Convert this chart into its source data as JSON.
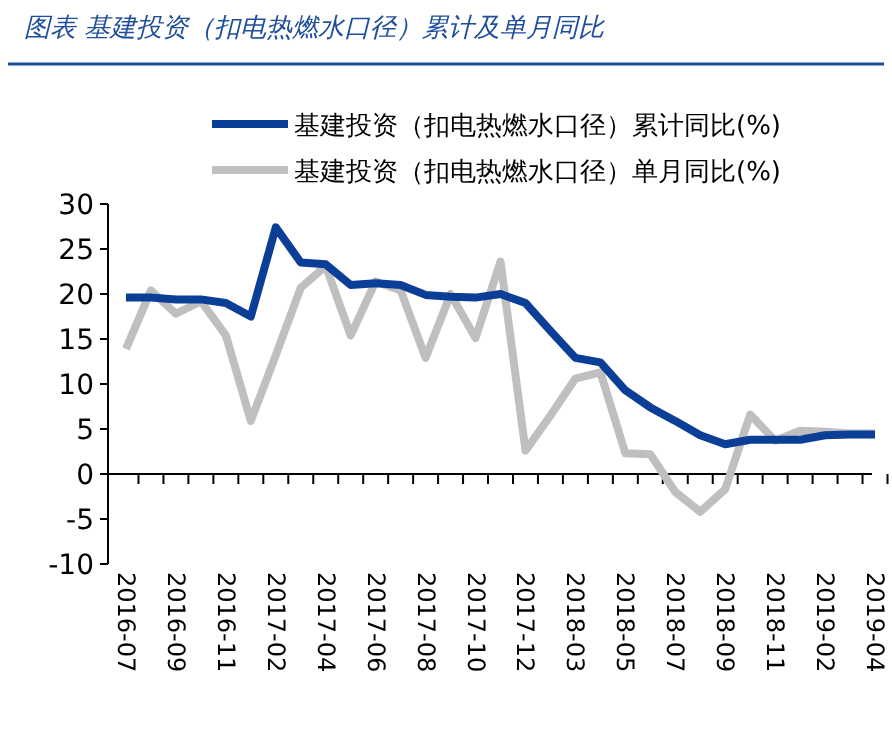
{
  "chart_data": {
    "type": "line",
    "title": "图表    基建投资（扣电热燃水口径）累计及单月同比",
    "categories": [
      "2016-07",
      null,
      "2016-09",
      null,
      "2016-11",
      null,
      "2017-02",
      null,
      "2017-04",
      null,
      "2017-06",
      null,
      "2017-08",
      null,
      "2017-10",
      null,
      "2017-12",
      null,
      "2018-03",
      null,
      "2018-05",
      null,
      "2018-07",
      null,
      "2018-09",
      null,
      "2018-11",
      null,
      "2019-02",
      null,
      "2019-04"
    ],
    "series": [
      {
        "name": "基建投资（扣电热燃水口径）累计同比(%)",
        "color": "#0b3f97",
        "values": [
          19.6,
          19.6,
          19.4,
          19.4,
          19.0,
          17.5,
          27.4,
          23.5,
          23.3,
          21.0,
          21.2,
          21.0,
          19.9,
          19.7,
          19.6,
          20.0,
          19.0,
          15.9,
          12.9,
          12.4,
          9.3,
          7.4,
          5.9,
          4.3,
          3.3,
          3.8,
          3.8,
          3.8,
          4.3,
          4.4,
          4.4
        ]
      },
      {
        "name": "基建投资（扣电热燃水口径）单月同比(%)",
        "color": "#bfbfbf",
        "values": [
          13.9,
          20.4,
          17.8,
          19.2,
          15.4,
          5.9,
          13.2,
          20.7,
          23.1,
          15.4,
          21.4,
          20.4,
          12.9,
          20.0,
          15.1,
          23.6,
          2.6,
          6.5,
          10.6,
          11.3,
          2.3,
          2.2,
          -2.0,
          -4.2,
          -1.7,
          6.6,
          3.7,
          4.8,
          4.7,
          4.5,
          4.5
        ]
      }
    ],
    "ylim": [
      -10,
      30
    ],
    "yticks": [
      -10,
      -5,
      0,
      5,
      10,
      15,
      20,
      25,
      30
    ],
    "legend": "top"
  }
}
